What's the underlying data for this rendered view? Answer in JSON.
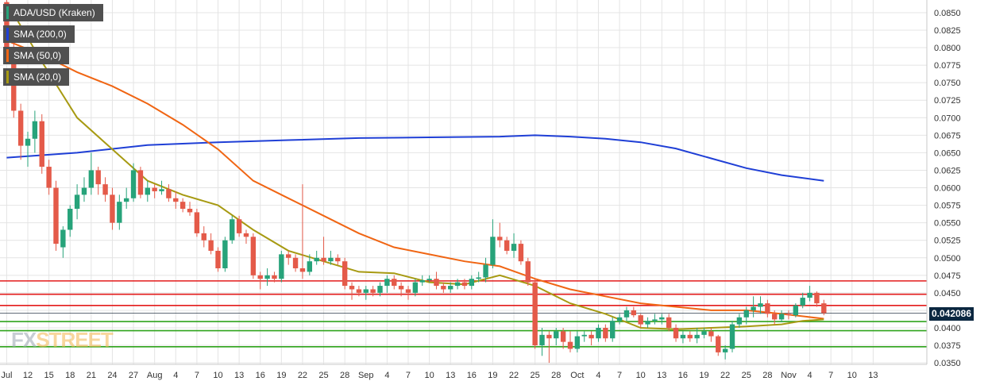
{
  "legend": {
    "pair": "ADA/USD (Kraken)",
    "sma200": "SMA (200,0)",
    "sma50": "SMA (50,0)",
    "sma20": "SMA (20,0)"
  },
  "watermark": {
    "fx": "FX",
    "street": "STREET"
  },
  "colors": {
    "up": "#27a37a",
    "down": "#e45a49",
    "sma200": "#1f3fd6",
    "sma50": "#f06513",
    "sma20": "#a79a12",
    "resistance": "#e31b1b",
    "support": "#2ea31b",
    "grid": "#e4e4e4",
    "price_tag": "#0b2740"
  },
  "chart_data": {
    "type": "candlestick",
    "title": "ADA/USD (Kraken)",
    "ylim": [
      0.0349,
      0.0859
    ],
    "y_ticks": [
      "0.0850",
      "0.0825",
      "0.0800",
      "0.0775",
      "0.0750",
      "0.0725",
      "0.0700",
      "0.0675",
      "0.0650",
      "0.0625",
      "0.0600",
      "0.0575",
      "0.0550",
      "0.0525",
      "0.0500",
      "0.0475",
      "0.0450",
      "0.0425",
      "0.0400",
      "0.0375",
      "0.0350"
    ],
    "x_ticks": [
      "Jul",
      "12",
      "15",
      "18",
      "21",
      "24",
      "27",
      "Aug",
      "4",
      "7",
      "10",
      "13",
      "16",
      "19",
      "22",
      "25",
      "28",
      "Sep",
      "4",
      "7",
      "10",
      "13",
      "16",
      "19",
      "22",
      "25",
      "28",
      "Oct",
      "4",
      "7",
      "10",
      "13",
      "16",
      "19",
      "22",
      "25",
      "28",
      "Nov",
      "4",
      "7",
      "10",
      "13"
    ],
    "last_price": "0.042086",
    "candles": [
      {
        "d": 0.0,
        "o": 0.0865,
        "h": 0.088,
        "l": 0.079,
        "c": 0.08
      },
      {
        "d": 1.0,
        "o": 0.08,
        "h": 0.0815,
        "l": 0.07,
        "c": 0.071
      },
      {
        "d": 2.0,
        "o": 0.071,
        "h": 0.072,
        "l": 0.064,
        "c": 0.066
      },
      {
        "d": 3.0,
        "o": 0.066,
        "h": 0.068,
        "l": 0.063,
        "c": 0.067
      },
      {
        "d": 4.0,
        "o": 0.067,
        "h": 0.071,
        "l": 0.065,
        "c": 0.0695
      },
      {
        "d": 5.0,
        "o": 0.0695,
        "h": 0.0705,
        "l": 0.062,
        "c": 0.063
      },
      {
        "d": 6.0,
        "o": 0.063,
        "h": 0.064,
        "l": 0.059,
        "c": 0.06
      },
      {
        "d": 7.0,
        "o": 0.06,
        "h": 0.061,
        "l": 0.051,
        "c": 0.052
      },
      {
        "d": 8.0,
        "o": 0.0515,
        "h": 0.0545,
        "l": 0.05,
        "c": 0.054
      },
      {
        "d": 9.0,
        "o": 0.054,
        "h": 0.0575,
        "l": 0.053,
        "c": 0.057
      },
      {
        "d": 10.0,
        "o": 0.057,
        "h": 0.0605,
        "l": 0.0555,
        "c": 0.059
      },
      {
        "d": 11.0,
        "o": 0.059,
        "h": 0.0615,
        "l": 0.058,
        "c": 0.06
      },
      {
        "d": 12.0,
        "o": 0.06,
        "h": 0.065,
        "l": 0.059,
        "c": 0.0625
      },
      {
        "d": 13.0,
        "o": 0.0625,
        "h": 0.063,
        "l": 0.059,
        "c": 0.0605
      },
      {
        "d": 14.0,
        "o": 0.0605,
        "h": 0.0615,
        "l": 0.058,
        "c": 0.059
      },
      {
        "d": 15.0,
        "o": 0.059,
        "h": 0.06,
        "l": 0.054,
        "c": 0.055
      },
      {
        "d": 16.0,
        "o": 0.055,
        "h": 0.059,
        "l": 0.054,
        "c": 0.058
      },
      {
        "d": 17.0,
        "o": 0.058,
        "h": 0.06,
        "l": 0.057,
        "c": 0.0585
      },
      {
        "d": 18.0,
        "o": 0.0585,
        "h": 0.0635,
        "l": 0.058,
        "c": 0.0625
      },
      {
        "d": 19.0,
        "o": 0.0625,
        "h": 0.063,
        "l": 0.0585,
        "c": 0.059
      },
      {
        "d": 20.0,
        "o": 0.059,
        "h": 0.061,
        "l": 0.058,
        "c": 0.06
      },
      {
        "d": 21.0,
        "o": 0.06,
        "h": 0.0605,
        "l": 0.0585,
        "c": 0.0595
      },
      {
        "d": 22.0,
        "o": 0.0595,
        "h": 0.061,
        "l": 0.059,
        "c": 0.0598
      },
      {
        "d": 23.0,
        "o": 0.0598,
        "h": 0.0605,
        "l": 0.058,
        "c": 0.0585
      },
      {
        "d": 24.0,
        "o": 0.0585,
        "h": 0.0595,
        "l": 0.057,
        "c": 0.058
      },
      {
        "d": 25.0,
        "o": 0.058,
        "h": 0.0585,
        "l": 0.0565,
        "c": 0.057
      },
      {
        "d": 26.0,
        "o": 0.057,
        "h": 0.058,
        "l": 0.056,
        "c": 0.0565
      },
      {
        "d": 27.0,
        "o": 0.0565,
        "h": 0.057,
        "l": 0.053,
        "c": 0.0535
      },
      {
        "d": 28.0,
        "o": 0.0535,
        "h": 0.0545,
        "l": 0.0515,
        "c": 0.0525
      },
      {
        "d": 29.0,
        "o": 0.0525,
        "h": 0.0535,
        "l": 0.0505,
        "c": 0.051
      },
      {
        "d": 30.0,
        "o": 0.051,
        "h": 0.0515,
        "l": 0.048,
        "c": 0.0485
      },
      {
        "d": 31.0,
        "o": 0.0485,
        "h": 0.053,
        "l": 0.048,
        "c": 0.0525
      },
      {
        "d": 32.0,
        "o": 0.0525,
        "h": 0.056,
        "l": 0.052,
        "c": 0.0555
      },
      {
        "d": 33.0,
        "o": 0.0555,
        "h": 0.056,
        "l": 0.053,
        "c": 0.0535
      },
      {
        "d": 34.0,
        "o": 0.0535,
        "h": 0.054,
        "l": 0.052,
        "c": 0.053
      },
      {
        "d": 35.0,
        "o": 0.053,
        "h": 0.0535,
        "l": 0.047,
        "c": 0.0475
      },
      {
        "d": 36.0,
        "o": 0.0475,
        "h": 0.048,
        "l": 0.0455,
        "c": 0.047
      },
      {
        "d": 37.0,
        "o": 0.047,
        "h": 0.0485,
        "l": 0.046,
        "c": 0.0475
      },
      {
        "d": 38.0,
        "o": 0.0475,
        "h": 0.048,
        "l": 0.0465,
        "c": 0.047
      },
      {
        "d": 39.0,
        "o": 0.047,
        "h": 0.051,
        "l": 0.0465,
        "c": 0.0505
      },
      {
        "d": 40.0,
        "o": 0.0505,
        "h": 0.051,
        "l": 0.049,
        "c": 0.05
      },
      {
        "d": 41.0,
        "o": 0.05,
        "h": 0.0505,
        "l": 0.048,
        "c": 0.0485
      },
      {
        "d": 42.0,
        "o": 0.0485,
        "h": 0.0605,
        "l": 0.047,
        "c": 0.048
      },
      {
        "d": 43.0,
        "o": 0.048,
        "h": 0.0505,
        "l": 0.0475,
        "c": 0.0495
      },
      {
        "d": 44.0,
        "o": 0.0495,
        "h": 0.051,
        "l": 0.049,
        "c": 0.05
      },
      {
        "d": 45.0,
        "o": 0.05,
        "h": 0.053,
        "l": 0.049,
        "c": 0.0495
      },
      {
        "d": 46.0,
        "o": 0.0495,
        "h": 0.051,
        "l": 0.049,
        "c": 0.05
      },
      {
        "d": 47.0,
        "o": 0.05,
        "h": 0.0505,
        "l": 0.049,
        "c": 0.0495
      },
      {
        "d": 48.0,
        "o": 0.0495,
        "h": 0.05,
        "l": 0.0455,
        "c": 0.046
      },
      {
        "d": 49.0,
        "o": 0.046,
        "h": 0.0465,
        "l": 0.044,
        "c": 0.0455
      },
      {
        "d": 50.0,
        "o": 0.0455,
        "h": 0.046,
        "l": 0.0445,
        "c": 0.045
      },
      {
        "d": 51.0,
        "o": 0.045,
        "h": 0.046,
        "l": 0.044,
        "c": 0.0455
      },
      {
        "d": 52.0,
        "o": 0.0455,
        "h": 0.046,
        "l": 0.0445,
        "c": 0.045
      },
      {
        "d": 53.0,
        "o": 0.045,
        "h": 0.0465,
        "l": 0.0445,
        "c": 0.046
      },
      {
        "d": 54.0,
        "o": 0.046,
        "h": 0.0475,
        "l": 0.045,
        "c": 0.047
      },
      {
        "d": 55.0,
        "o": 0.047,
        "h": 0.0475,
        "l": 0.0455,
        "c": 0.046
      },
      {
        "d": 56.0,
        "o": 0.046,
        "h": 0.0465,
        "l": 0.0445,
        "c": 0.0455
      },
      {
        "d": 57.0,
        "o": 0.0455,
        "h": 0.046,
        "l": 0.044,
        "c": 0.045
      },
      {
        "d": 58.0,
        "o": 0.045,
        "h": 0.047,
        "l": 0.0445,
        "c": 0.0465
      },
      {
        "d": 59.0,
        "o": 0.0465,
        "h": 0.0475,
        "l": 0.046,
        "c": 0.0468
      },
      {
        "d": 60.0,
        "o": 0.0468,
        "h": 0.0475,
        "l": 0.0465,
        "c": 0.047
      },
      {
        "d": 61.0,
        "o": 0.047,
        "h": 0.048,
        "l": 0.0455,
        "c": 0.046
      },
      {
        "d": 62.0,
        "o": 0.046,
        "h": 0.0465,
        "l": 0.045,
        "c": 0.0455
      },
      {
        "d": 63.0,
        "o": 0.0455,
        "h": 0.0465,
        "l": 0.045,
        "c": 0.046
      },
      {
        "d": 64.0,
        "o": 0.046,
        "h": 0.047,
        "l": 0.0455,
        "c": 0.0465
      },
      {
        "d": 65.0,
        "o": 0.0465,
        "h": 0.047,
        "l": 0.0455,
        "c": 0.046
      },
      {
        "d": 66.0,
        "o": 0.046,
        "h": 0.0475,
        "l": 0.0455,
        "c": 0.047
      },
      {
        "d": 67.0,
        "o": 0.047,
        "h": 0.048,
        "l": 0.0465,
        "c": 0.0472
      },
      {
        "d": 68.0,
        "o": 0.0472,
        "h": 0.05,
        "l": 0.0465,
        "c": 0.049
      },
      {
        "d": 69.0,
        "o": 0.049,
        "h": 0.0555,
        "l": 0.0485,
        "c": 0.053
      },
      {
        "d": 70.0,
        "o": 0.053,
        "h": 0.055,
        "l": 0.0515,
        "c": 0.0525
      },
      {
        "d": 71.0,
        "o": 0.0525,
        "h": 0.053,
        "l": 0.0505,
        "c": 0.051
      },
      {
        "d": 72.0,
        "o": 0.051,
        "h": 0.0535,
        "l": 0.05,
        "c": 0.052
      },
      {
        "d": 73.0,
        "o": 0.052,
        "h": 0.0525,
        "l": 0.049,
        "c": 0.0495
      },
      {
        "d": 74.0,
        "o": 0.0495,
        "h": 0.05,
        "l": 0.046,
        "c": 0.0465
      },
      {
        "d": 75.0,
        "o": 0.0465,
        "h": 0.047,
        "l": 0.037,
        "c": 0.0375
      },
      {
        "d": 76.0,
        "o": 0.0375,
        "h": 0.04,
        "l": 0.036,
        "c": 0.039
      },
      {
        "d": 77.0,
        "o": 0.039,
        "h": 0.0395,
        "l": 0.035,
        "c": 0.0385
      },
      {
        "d": 78.0,
        "o": 0.0385,
        "h": 0.04,
        "l": 0.0375,
        "c": 0.0395
      },
      {
        "d": 79.0,
        "o": 0.0395,
        "h": 0.04,
        "l": 0.037,
        "c": 0.038
      },
      {
        "d": 80.0,
        "o": 0.038,
        "h": 0.0395,
        "l": 0.0365,
        "c": 0.037
      },
      {
        "d": 81.0,
        "o": 0.037,
        "h": 0.0395,
        "l": 0.0365,
        "c": 0.0388
      },
      {
        "d": 82.0,
        "o": 0.0388,
        "h": 0.0395,
        "l": 0.038,
        "c": 0.039
      },
      {
        "d": 83.0,
        "o": 0.039,
        "h": 0.0395,
        "l": 0.0375,
        "c": 0.0385
      },
      {
        "d": 84.0,
        "o": 0.0385,
        "h": 0.0405,
        "l": 0.038,
        "c": 0.04
      },
      {
        "d": 85.0,
        "o": 0.04,
        "h": 0.0405,
        "l": 0.038,
        "c": 0.0385
      },
      {
        "d": 86.0,
        "o": 0.0385,
        "h": 0.0415,
        "l": 0.038,
        "c": 0.041
      },
      {
        "d": 87.0,
        "o": 0.041,
        "h": 0.042,
        "l": 0.0405,
        "c": 0.0415
      },
      {
        "d": 88.0,
        "o": 0.0415,
        "h": 0.043,
        "l": 0.041,
        "c": 0.0425
      },
      {
        "d": 89.0,
        "o": 0.0425,
        "h": 0.043,
        "l": 0.0415,
        "c": 0.0418
      },
      {
        "d": 90.0,
        "o": 0.0418,
        "h": 0.042,
        "l": 0.04,
        "c": 0.0405
      },
      {
        "d": 91.0,
        "o": 0.0405,
        "h": 0.0415,
        "l": 0.04,
        "c": 0.041
      },
      {
        "d": 92.0,
        "o": 0.041,
        "h": 0.042,
        "l": 0.0405,
        "c": 0.0412
      },
      {
        "d": 93.0,
        "o": 0.0412,
        "h": 0.042,
        "l": 0.0405,
        "c": 0.0415
      },
      {
        "d": 94.0,
        "o": 0.0415,
        "h": 0.042,
        "l": 0.0395,
        "c": 0.04
      },
      {
        "d": 95.0,
        "o": 0.04,
        "h": 0.0405,
        "l": 0.038,
        "c": 0.0385
      },
      {
        "d": 96.0,
        "o": 0.0385,
        "h": 0.0395,
        "l": 0.0378,
        "c": 0.039
      },
      {
        "d": 97.0,
        "o": 0.039,
        "h": 0.0395,
        "l": 0.038,
        "c": 0.0385
      },
      {
        "d": 98.0,
        "o": 0.0385,
        "h": 0.04,
        "l": 0.0378,
        "c": 0.039
      },
      {
        "d": 99.0,
        "o": 0.039,
        "h": 0.04,
        "l": 0.0385,
        "c": 0.0395
      },
      {
        "d": 100.0,
        "o": 0.0395,
        "h": 0.04,
        "l": 0.038,
        "c": 0.0388
      },
      {
        "d": 101.0,
        "o": 0.0388,
        "h": 0.039,
        "l": 0.036,
        "c": 0.0365
      },
      {
        "d": 102.0,
        "o": 0.0365,
        "h": 0.0375,
        "l": 0.0355,
        "c": 0.037
      },
      {
        "d": 103.0,
        "o": 0.037,
        "h": 0.041,
        "l": 0.0365,
        "c": 0.0405
      },
      {
        "d": 104.0,
        "o": 0.0405,
        "h": 0.042,
        "l": 0.04,
        "c": 0.0415
      },
      {
        "d": 105.0,
        "o": 0.0415,
        "h": 0.043,
        "l": 0.0405,
        "c": 0.0425
      },
      {
        "d": 106.0,
        "o": 0.0425,
        "h": 0.0445,
        "l": 0.0415,
        "c": 0.043
      },
      {
        "d": 107.0,
        "o": 0.043,
        "h": 0.0445,
        "l": 0.042,
        "c": 0.0435
      },
      {
        "d": 108.0,
        "o": 0.0435,
        "h": 0.044,
        "l": 0.0415,
        "c": 0.042
      },
      {
        "d": 109.0,
        "o": 0.042,
        "h": 0.0425,
        "l": 0.0405,
        "c": 0.0412
      },
      {
        "d": 110.0,
        "o": 0.0412,
        "h": 0.0425,
        "l": 0.0408,
        "c": 0.042
      },
      {
        "d": 111.0,
        "o": 0.042,
        "h": 0.0425,
        "l": 0.0412,
        "c": 0.0418
      },
      {
        "d": 112.0,
        "o": 0.0418,
        "h": 0.0435,
        "l": 0.0415,
        "c": 0.0432
      },
      {
        "d": 113.0,
        "o": 0.0432,
        "h": 0.045,
        "l": 0.0428,
        "c": 0.0443
      },
      {
        "d": 114.0,
        "o": 0.0443,
        "h": 0.046,
        "l": 0.0438,
        "c": 0.045
      },
      {
        "d": 115.0,
        "o": 0.045,
        "h": 0.0452,
        "l": 0.043,
        "c": 0.0435
      },
      {
        "d": 116.0,
        "o": 0.0435,
        "h": 0.044,
        "l": 0.0418,
        "c": 0.0421
      }
    ],
    "series": [
      {
        "name": "SMA (200,0)",
        "x": [
          0,
          10,
          20,
          30,
          40,
          50,
          60,
          70,
          75,
          80,
          85,
          90,
          95,
          100,
          105,
          110,
          116
        ],
        "values": [
          0.0643,
          0.065,
          0.0661,
          0.0665,
          0.0668,
          0.0671,
          0.0672,
          0.0673,
          0.0675,
          0.0673,
          0.067,
          0.0665,
          0.0656,
          0.0642,
          0.0628,
          0.0618,
          0.061
        ]
      },
      {
        "name": "SMA (50,0)",
        "x": [
          0,
          5,
          10,
          15,
          20,
          25,
          30,
          35,
          40,
          45,
          50,
          55,
          60,
          65,
          70,
          75,
          80,
          85,
          90,
          95,
          100,
          105,
          110,
          116
        ],
        "values": [
          0.081,
          0.079,
          0.0765,
          0.0745,
          0.072,
          0.069,
          0.0655,
          0.061,
          0.0585,
          0.056,
          0.0535,
          0.0515,
          0.0505,
          0.0495,
          0.0488,
          0.047,
          0.0455,
          0.0445,
          0.0435,
          0.043,
          0.0425,
          0.0425,
          0.042,
          0.0413
        ]
      },
      {
        "name": "SMA (20,0)",
        "x": [
          0,
          5,
          10,
          15,
          20,
          25,
          30,
          35,
          40,
          45,
          50,
          55,
          60,
          65,
          70,
          75,
          80,
          85,
          90,
          95,
          100,
          105,
          110,
          113,
          116
        ],
        "values": [
          0.0865,
          0.078,
          0.07,
          0.0655,
          0.061,
          0.059,
          0.0575,
          0.054,
          0.051,
          0.0495,
          0.048,
          0.0478,
          0.0465,
          0.0462,
          0.0475,
          0.046,
          0.0435,
          0.042,
          0.04,
          0.0398,
          0.04,
          0.0402,
          0.0405,
          0.041,
          0.0412
        ]
      }
    ],
    "resistance_levels": [
      0.0467,
      0.0448,
      0.0432
    ],
    "support_levels": [
      0.0409,
      0.0396,
      0.0373
    ],
    "current_level": 0.042086
  }
}
